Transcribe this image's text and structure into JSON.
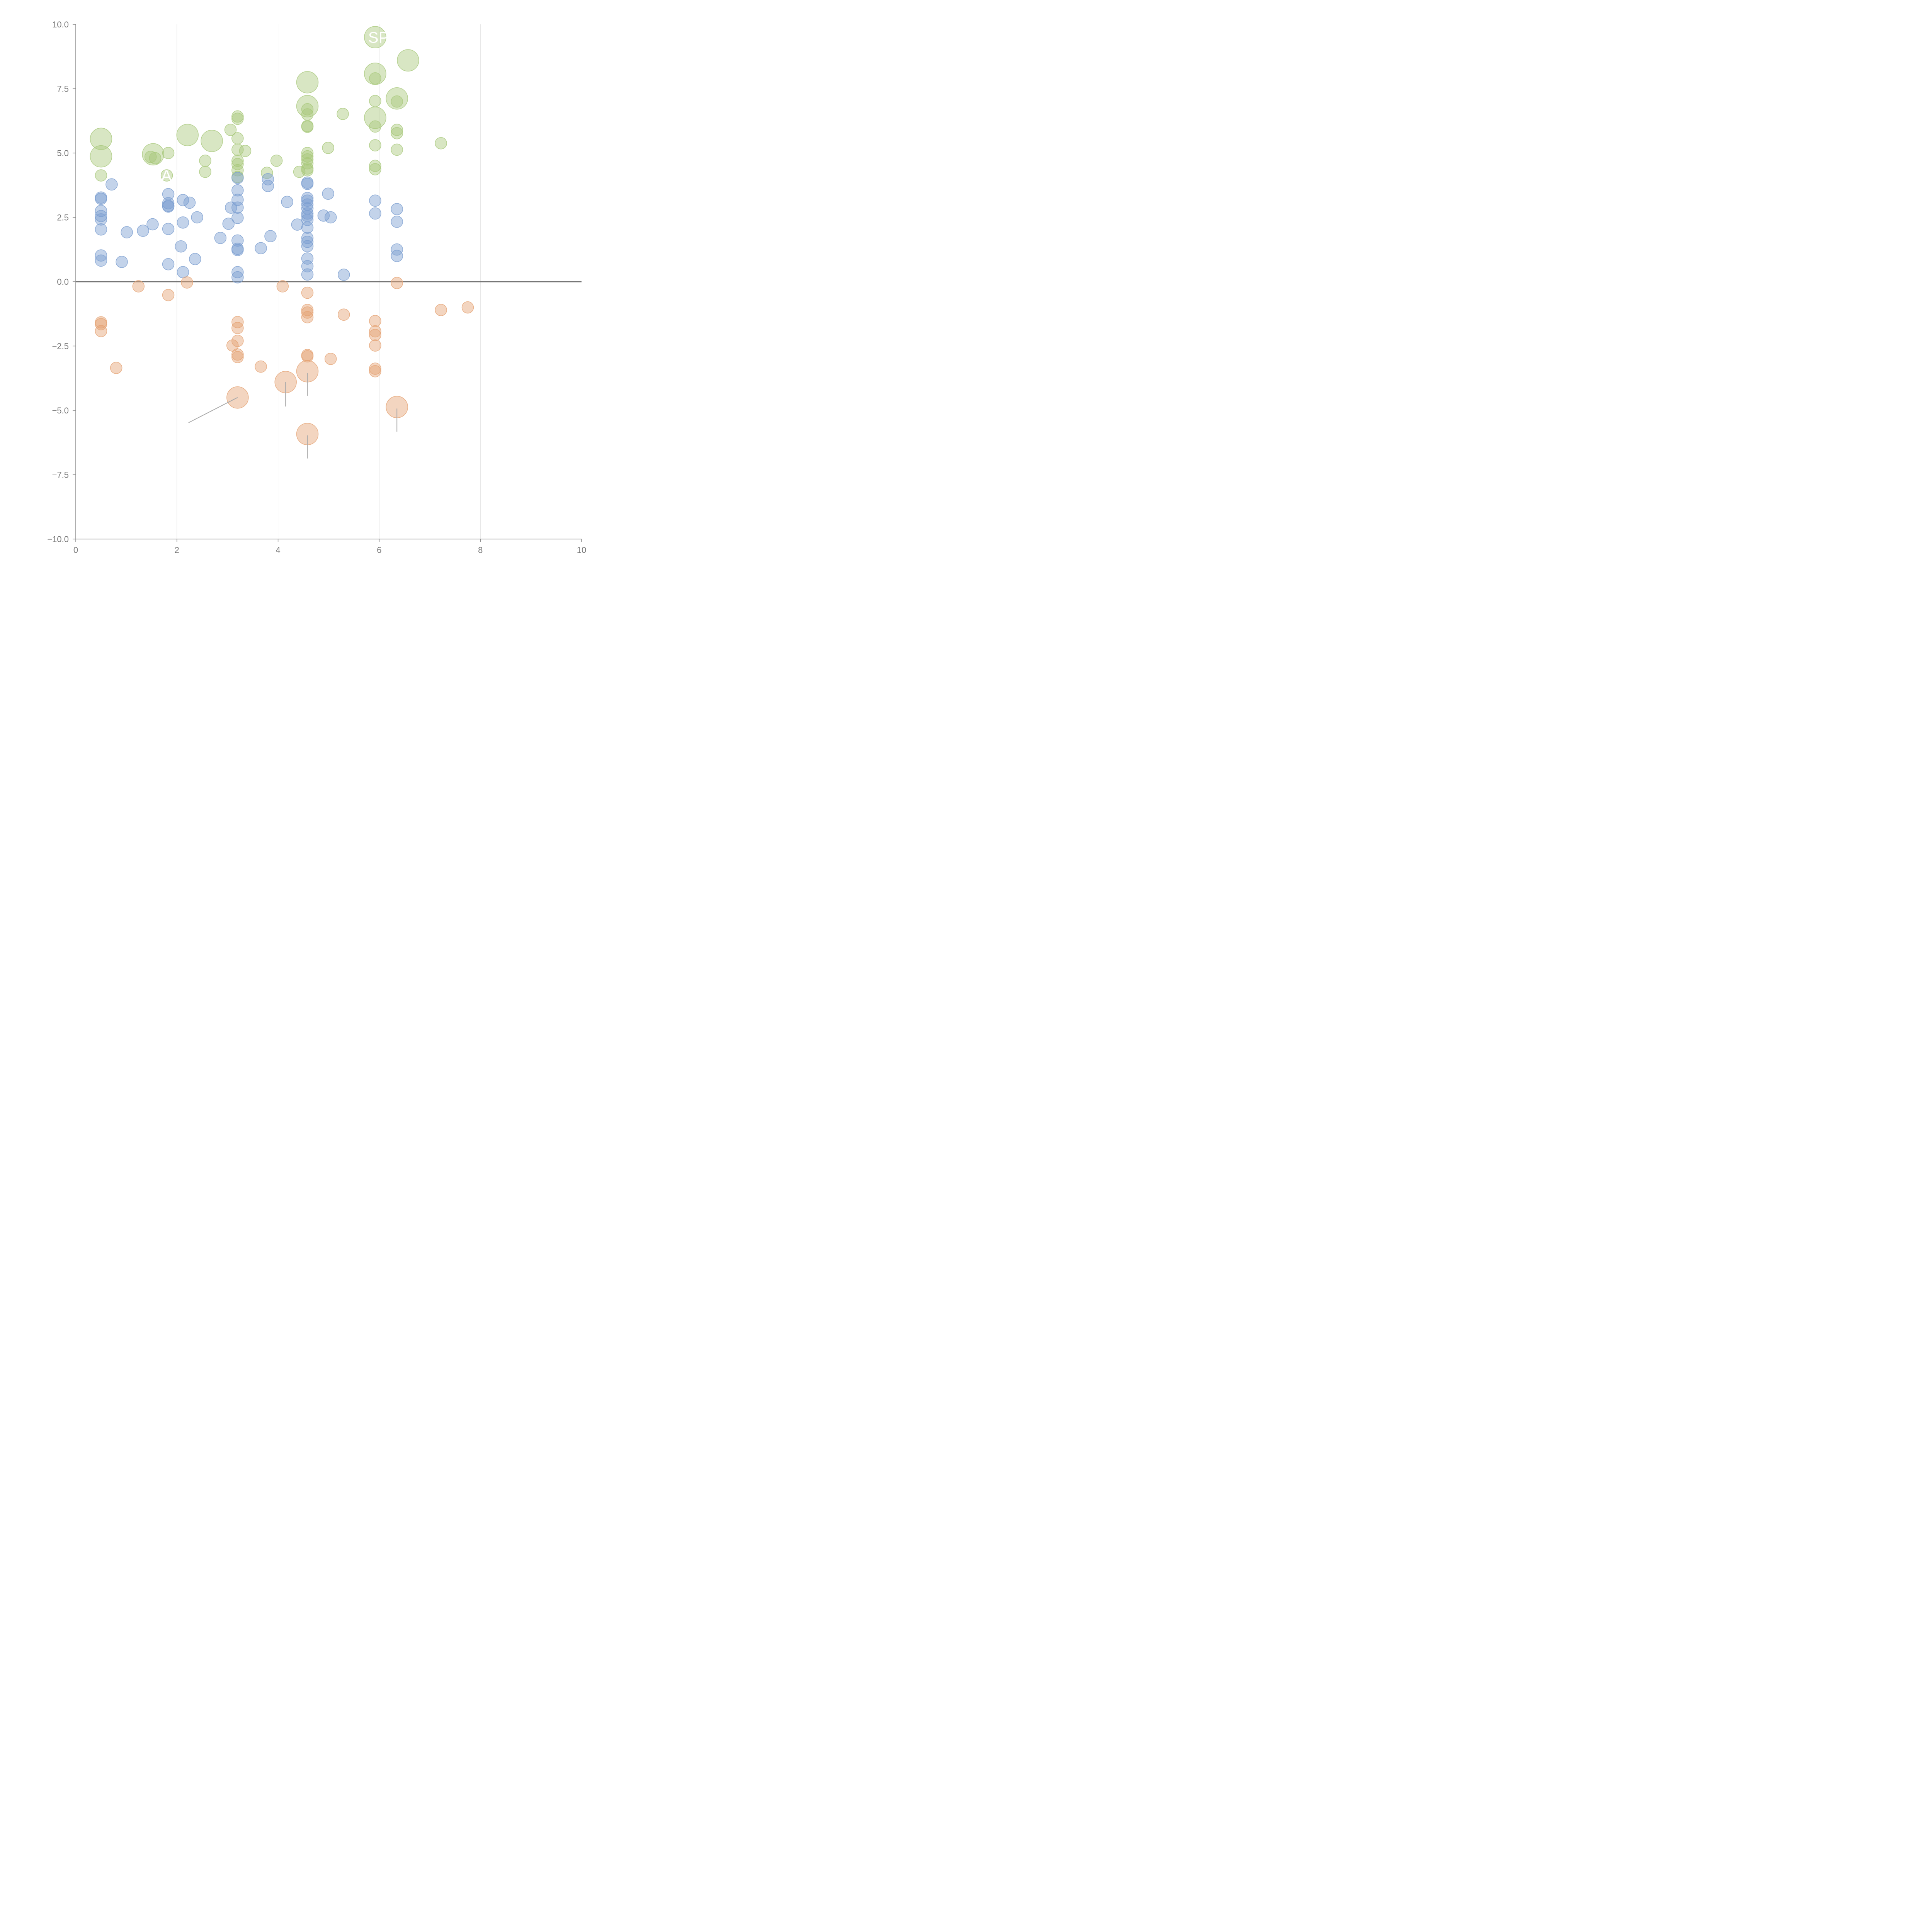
{
  "chart_data": {
    "type": "scatter",
    "title": "",
    "xlabel": "",
    "ylabel": "",
    "xlim": [
      0,
      10
    ],
    "ylim": [
      -10,
      10
    ],
    "x_ticks": [
      "0",
      "2",
      "4",
      "6",
      "8",
      "10"
    ],
    "y_ticks": [
      "10.0",
      "7.5",
      "5.0",
      "2.5",
      "0.0",
      "−2.5",
      "−5.0",
      "−7.5",
      "−10.0"
    ],
    "grid": "vertical",
    "zero_line": true,
    "colors": {
      "high": "#a8c87a",
      "mid": "#7b9ed0",
      "low": "#e5a273"
    },
    "series": [
      {
        "color": "high",
        "points": [
          {
            "x": 0.5,
            "y": 5.55,
            "s": "l"
          },
          {
            "x": 0.5,
            "y": 4.87,
            "s": "l"
          },
          {
            "x": 0.5,
            "y": 4.13,
            "s": "s"
          },
          {
            "x": 1.53,
            "y": 4.95,
            "s": "l"
          },
          {
            "x": 1.48,
            "y": 4.85,
            "s": "s"
          },
          {
            "x": 1.57,
            "y": 4.8,
            "s": "s"
          },
          {
            "x": 1.83,
            "y": 5.0,
            "s": "s"
          },
          {
            "x": 1.8,
            "y": 4.13,
            "s": "s"
          },
          {
            "x": 2.21,
            "y": 5.7,
            "s": "l"
          },
          {
            "x": 2.69,
            "y": 5.47,
            "s": "l"
          },
          {
            "x": 2.56,
            "y": 4.7,
            "s": "s"
          },
          {
            "x": 2.56,
            "y": 4.27,
            "s": "s"
          },
          {
            "x": 3.06,
            "y": 5.9,
            "s": "s"
          },
          {
            "x": 3.2,
            "y": 6.42,
            "s": "s"
          },
          {
            "x": 3.2,
            "y": 6.33,
            "s": "s"
          },
          {
            "x": 3.2,
            "y": 5.57,
            "s": "s"
          },
          {
            "x": 3.2,
            "y": 5.13,
            "s": "s"
          },
          {
            "x": 3.35,
            "y": 5.08,
            "s": "s"
          },
          {
            "x": 3.2,
            "y": 4.7,
            "s": "s"
          },
          {
            "x": 3.2,
            "y": 4.57,
            "s": "s"
          },
          {
            "x": 3.2,
            "y": 4.33,
            "s": "s"
          },
          {
            "x": 3.2,
            "y": 4.07,
            "s": "s"
          },
          {
            "x": 3.78,
            "y": 4.23,
            "s": "s"
          },
          {
            "x": 3.97,
            "y": 4.7,
            "s": "s"
          },
          {
            "x": 4.58,
            "y": 7.75,
            "s": "l"
          },
          {
            "x": 4.58,
            "y": 6.82,
            "s": "l"
          },
          {
            "x": 4.58,
            "y": 6.7,
            "s": "s"
          },
          {
            "x": 4.58,
            "y": 6.5,
            "s": "s"
          },
          {
            "x": 4.58,
            "y": 6.05,
            "s": "s"
          },
          {
            "x": 4.58,
            "y": 6.02,
            "s": "s"
          },
          {
            "x": 4.58,
            "y": 5.0,
            "s": "s"
          },
          {
            "x": 4.58,
            "y": 4.87,
            "s": "s"
          },
          {
            "x": 4.58,
            "y": 4.75,
            "s": "s"
          },
          {
            "x": 4.58,
            "y": 4.6,
            "s": "s"
          },
          {
            "x": 4.58,
            "y": 4.4,
            "s": "s"
          },
          {
            "x": 4.58,
            "y": 4.33,
            "s": "s"
          },
          {
            "x": 4.42,
            "y": 4.27,
            "s": "s"
          },
          {
            "x": 4.99,
            "y": 5.2,
            "s": "s"
          },
          {
            "x": 5.28,
            "y": 6.52,
            "s": "s"
          },
          {
            "x": 5.92,
            "y": 9.5,
            "s": "l"
          },
          {
            "x": 5.92,
            "y": 8.08,
            "s": "l"
          },
          {
            "x": 5.92,
            "y": 7.9,
            "s": "s"
          },
          {
            "x": 5.92,
            "y": 7.02,
            "s": "s"
          },
          {
            "x": 5.92,
            "y": 6.37,
            "s": "l"
          },
          {
            "x": 5.92,
            "y": 6.03,
            "s": "s"
          },
          {
            "x": 5.92,
            "y": 5.3,
            "s": "s"
          },
          {
            "x": 5.92,
            "y": 4.5,
            "s": "s"
          },
          {
            "x": 5.92,
            "y": 4.37,
            "s": "s"
          },
          {
            "x": 6.35,
            "y": 7.12,
            "s": "l"
          },
          {
            "x": 6.35,
            "y": 7.0,
            "s": "s"
          },
          {
            "x": 6.35,
            "y": 5.9,
            "s": "s"
          },
          {
            "x": 6.35,
            "y": 5.77,
            "s": "s"
          },
          {
            "x": 6.35,
            "y": 5.13,
            "s": "s"
          },
          {
            "x": 6.57,
            "y": 8.6,
            "s": "l"
          },
          {
            "x": 7.22,
            "y": 5.38,
            "s": "s"
          }
        ]
      },
      {
        "color": "mid",
        "points": [
          {
            "x": 0.5,
            "y": 3.27,
            "s": "s"
          },
          {
            "x": 0.5,
            "y": 3.22,
            "s": "s"
          },
          {
            "x": 0.5,
            "y": 2.75,
            "s": "s"
          },
          {
            "x": 0.5,
            "y": 2.55,
            "s": "s"
          },
          {
            "x": 0.5,
            "y": 2.42,
            "s": "s"
          },
          {
            "x": 0.5,
            "y": 2.03,
            "s": "s"
          },
          {
            "x": 0.5,
            "y": 1.02,
            "s": "s"
          },
          {
            "x": 0.5,
            "y": 0.82,
            "s": "s"
          },
          {
            "x": 0.71,
            "y": 3.78,
            "s": "s"
          },
          {
            "x": 0.91,
            "y": 0.77,
            "s": "s"
          },
          {
            "x": 1.01,
            "y": 1.92,
            "s": "s"
          },
          {
            "x": 1.33,
            "y": 1.98,
            "s": "s"
          },
          {
            "x": 1.52,
            "y": 2.23,
            "s": "s"
          },
          {
            "x": 1.83,
            "y": 3.4,
            "s": "s"
          },
          {
            "x": 1.83,
            "y": 3.05,
            "s": "s"
          },
          {
            "x": 1.83,
            "y": 2.95,
            "s": "s"
          },
          {
            "x": 1.83,
            "y": 2.92,
            "s": "s"
          },
          {
            "x": 1.83,
            "y": 2.05,
            "s": "s"
          },
          {
            "x": 1.83,
            "y": 0.68,
            "s": "s"
          },
          {
            "x": 2.08,
            "y": 1.37,
            "s": "s"
          },
          {
            "x": 2.12,
            "y": 3.17,
            "s": "s"
          },
          {
            "x": 2.12,
            "y": 2.3,
            "s": "s"
          },
          {
            "x": 2.12,
            "y": 0.37,
            "s": "s"
          },
          {
            "x": 2.25,
            "y": 3.07,
            "s": "s"
          },
          {
            "x": 2.4,
            "y": 2.5,
            "s": "s"
          },
          {
            "x": 2.36,
            "y": 0.88,
            "s": "s"
          },
          {
            "x": 2.86,
            "y": 1.7,
            "s": "s"
          },
          {
            "x": 3.02,
            "y": 2.25,
            "s": "s"
          },
          {
            "x": 3.07,
            "y": 2.88,
            "s": "s"
          },
          {
            "x": 3.2,
            "y": 4.03,
            "s": "s"
          },
          {
            "x": 3.2,
            "y": 3.55,
            "s": "s"
          },
          {
            "x": 3.2,
            "y": 3.18,
            "s": "s"
          },
          {
            "x": 3.2,
            "y": 2.88,
            "s": "s"
          },
          {
            "x": 3.2,
            "y": 2.48,
            "s": "s"
          },
          {
            "x": 3.2,
            "y": 1.6,
            "s": "s"
          },
          {
            "x": 3.2,
            "y": 1.28,
            "s": "s"
          },
          {
            "x": 3.2,
            "y": 1.23,
            "s": "s"
          },
          {
            "x": 3.2,
            "y": 0.37,
            "s": "s"
          },
          {
            "x": 3.2,
            "y": 0.17,
            "s": "s"
          },
          {
            "x": 3.66,
            "y": 1.3,
            "s": "s"
          },
          {
            "x": 3.8,
            "y": 3.98,
            "s": "s"
          },
          {
            "x": 3.8,
            "y": 3.72,
            "s": "s"
          },
          {
            "x": 3.85,
            "y": 1.77,
            "s": "s"
          },
          {
            "x": 4.18,
            "y": 3.1,
            "s": "s"
          },
          {
            "x": 4.38,
            "y": 2.22,
            "s": "s"
          },
          {
            "x": 4.58,
            "y": 3.85,
            "s": "s"
          },
          {
            "x": 4.58,
            "y": 3.8,
            "s": "s"
          },
          {
            "x": 4.58,
            "y": 3.25,
            "s": "s"
          },
          {
            "x": 4.58,
            "y": 3.15,
            "s": "s"
          },
          {
            "x": 4.58,
            "y": 3.0,
            "s": "s"
          },
          {
            "x": 4.58,
            "y": 2.85,
            "s": "s"
          },
          {
            "x": 4.58,
            "y": 2.65,
            "s": "s"
          },
          {
            "x": 4.58,
            "y": 2.55,
            "s": "s"
          },
          {
            "x": 4.58,
            "y": 2.4,
            "s": "s"
          },
          {
            "x": 4.58,
            "y": 2.1,
            "s": "s"
          },
          {
            "x": 4.58,
            "y": 1.7,
            "s": "s"
          },
          {
            "x": 4.58,
            "y": 1.55,
            "s": "s"
          },
          {
            "x": 4.58,
            "y": 1.38,
            "s": "s"
          },
          {
            "x": 4.58,
            "y": 0.9,
            "s": "s"
          },
          {
            "x": 4.58,
            "y": 0.6,
            "s": "s"
          },
          {
            "x": 4.58,
            "y": 0.28,
            "s": "s"
          },
          {
            "x": 4.9,
            "y": 2.57,
            "s": "s"
          },
          {
            "x": 4.99,
            "y": 3.42,
            "s": "s"
          },
          {
            "x": 5.04,
            "y": 2.5,
            "s": "s"
          },
          {
            "x": 5.3,
            "y": 0.27,
            "s": "s"
          },
          {
            "x": 5.92,
            "y": 3.15,
            "s": "s"
          },
          {
            "x": 5.92,
            "y": 2.65,
            "s": "s"
          },
          {
            "x": 6.35,
            "y": 2.82,
            "s": "s"
          },
          {
            "x": 6.35,
            "y": 2.33,
            "s": "s"
          },
          {
            "x": 6.35,
            "y": 1.25,
            "s": "s"
          },
          {
            "x": 6.35,
            "y": 1.0,
            "s": "s"
          }
        ]
      },
      {
        "color": "low",
        "points": [
          {
            "x": 0.5,
            "y": -1.58,
            "s": "s"
          },
          {
            "x": 0.5,
            "y": -1.65,
            "s": "s"
          },
          {
            "x": 0.5,
            "y": -1.92,
            "s": "s"
          },
          {
            "x": 0.8,
            "y": -3.35,
            "s": "s"
          },
          {
            "x": 1.24,
            "y": -0.18,
            "s": "s"
          },
          {
            "x": 1.83,
            "y": -0.52,
            "s": "s"
          },
          {
            "x": 2.2,
            "y": -0.03,
            "s": "s"
          },
          {
            "x": 3.1,
            "y": -2.48,
            "s": "s"
          },
          {
            "x": 3.2,
            "y": -1.57,
            "s": "s"
          },
          {
            "x": 3.2,
            "y": -1.8,
            "s": "s"
          },
          {
            "x": 3.2,
            "y": -2.3,
            "s": "s"
          },
          {
            "x": 3.2,
            "y": -2.83,
            "s": "s"
          },
          {
            "x": 3.2,
            "y": -2.93,
            "s": "s"
          },
          {
            "x": 3.2,
            "y": -4.5,
            "s": "l"
          },
          {
            "x": 3.66,
            "y": -3.3,
            "s": "s"
          },
          {
            "x": 4.09,
            "y": -0.18,
            "s": "s"
          },
          {
            "x": 4.15,
            "y": -3.9,
            "s": "l"
          },
          {
            "x": 4.58,
            "y": -0.43,
            "s": "s"
          },
          {
            "x": 4.58,
            "y": -1.1,
            "s": "s"
          },
          {
            "x": 4.58,
            "y": -1.2,
            "s": "s"
          },
          {
            "x": 4.58,
            "y": -1.38,
            "s": "s"
          },
          {
            "x": 4.58,
            "y": -2.85,
            "s": "s"
          },
          {
            "x": 4.58,
            "y": -2.9,
            "s": "s"
          },
          {
            "x": 4.58,
            "y": -3.48,
            "s": "l"
          },
          {
            "x": 4.58,
            "y": -5.92,
            "s": "l"
          },
          {
            "x": 5.04,
            "y": -3.0,
            "s": "s"
          },
          {
            "x": 5.3,
            "y": -1.28,
            "s": "s"
          },
          {
            "x": 5.92,
            "y": -1.53,
            "s": "s"
          },
          {
            "x": 5.92,
            "y": -1.93,
            "s": "s"
          },
          {
            "x": 5.92,
            "y": -2.07,
            "s": "s"
          },
          {
            "x": 5.92,
            "y": -2.48,
            "s": "s"
          },
          {
            "x": 5.92,
            "y": -3.38,
            "s": "s"
          },
          {
            "x": 5.92,
            "y": -3.48,
            "s": "s"
          },
          {
            "x": 6.35,
            "y": -0.05,
            "s": "s"
          },
          {
            "x": 6.35,
            "y": -4.87,
            "s": "l"
          },
          {
            "x": 7.22,
            "y": -1.1,
            "s": "s"
          },
          {
            "x": 7.75,
            "y": -1.0,
            "s": "s"
          }
        ]
      }
    ],
    "annotations": [
      {
        "label": "AR",
        "x": 1.83,
        "y": 4.13
      },
      {
        "label": "SP",
        "x": 5.92,
        "y": 9.5
      }
    ],
    "leader_lines": [
      {
        "x1": 3.2,
        "y1": -4.5,
        "x2": 2.23,
        "y2": -5.48
      },
      {
        "x1": 4.15,
        "y1": -3.9,
        "x2": 4.15,
        "y2": -4.85
      },
      {
        "x1": 4.58,
        "y1": -3.55,
        "x2": 4.58,
        "y2": -4.43
      },
      {
        "x1": 4.58,
        "y1": -5.97,
        "x2": 4.58,
        "y2": -6.87
      },
      {
        "x1": 6.35,
        "y1": -4.93,
        "x2": 6.35,
        "y2": -5.83
      }
    ]
  }
}
